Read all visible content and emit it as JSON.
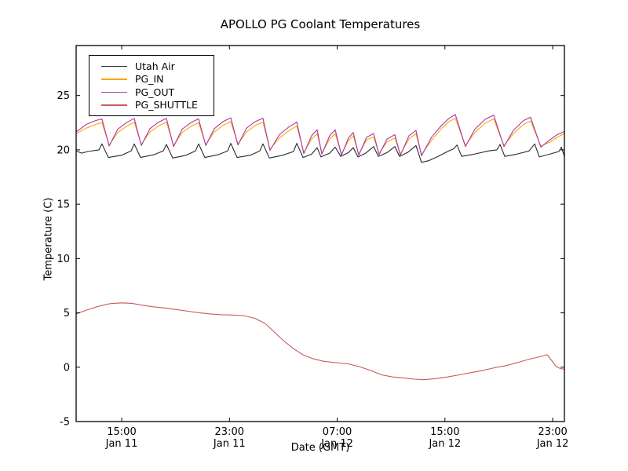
{
  "chart_data": {
    "type": "line",
    "title": "APOLLO PG Coolant Temperatures",
    "xlabel": "Date (GMT)",
    "ylabel": "Temperature (C)",
    "background_color": "#ffffff",
    "axis_color": "#000000",
    "grid": false,
    "legend_position": "upper left",
    "xlim_hours_from_jan11_0000": [
      11.62,
      47.87
    ],
    "ylim": [
      -5,
      29.6
    ],
    "y_ticks": [
      -5,
      0,
      5,
      10,
      15,
      20,
      25
    ],
    "x_ticks": [
      {
        "t": 15,
        "lines": [
          "15:00",
          "Jan 11"
        ]
      },
      {
        "t": 23,
        "lines": [
          "23:00",
          "Jan 11"
        ]
      },
      {
        "t": 31,
        "lines": [
          "07:00",
          "Jan 12"
        ]
      },
      {
        "t": 39,
        "lines": [
          "15:00",
          "Jan 12"
        ]
      },
      {
        "t": 47,
        "lines": [
          "23:00",
          "Jan 12"
        ]
      }
    ],
    "series": [
      {
        "name": "Utah Air",
        "color": "#2a2a2a",
        "points": [
          [
            11.62,
            19.9
          ],
          [
            12.03,
            19.7
          ],
          [
            12.49,
            19.85
          ],
          [
            13.31,
            20.0
          ],
          [
            13.54,
            20.55
          ],
          [
            14.01,
            19.3
          ],
          [
            15.0,
            19.5
          ],
          [
            15.7,
            19.9
          ],
          [
            15.93,
            20.55
          ],
          [
            16.4,
            19.3
          ],
          [
            17.39,
            19.55
          ],
          [
            18.09,
            19.9
          ],
          [
            18.32,
            20.5
          ],
          [
            18.79,
            19.25
          ],
          [
            19.78,
            19.5
          ],
          [
            20.48,
            19.9
          ],
          [
            20.71,
            20.55
          ],
          [
            21.18,
            19.3
          ],
          [
            22.17,
            19.55
          ],
          [
            22.87,
            19.9
          ],
          [
            23.1,
            20.6
          ],
          [
            23.57,
            19.3
          ],
          [
            24.56,
            19.5
          ],
          [
            25.26,
            19.9
          ],
          [
            25.49,
            20.55
          ],
          [
            25.96,
            19.25
          ],
          [
            26.95,
            19.5
          ],
          [
            27.76,
            19.85
          ],
          [
            28.0,
            20.6
          ],
          [
            28.46,
            19.3
          ],
          [
            29.1,
            19.6
          ],
          [
            29.51,
            20.2
          ],
          [
            29.8,
            19.35
          ],
          [
            30.44,
            19.7
          ],
          [
            30.85,
            20.25
          ],
          [
            31.26,
            19.4
          ],
          [
            31.84,
            19.75
          ],
          [
            32.19,
            20.2
          ],
          [
            32.54,
            19.35
          ],
          [
            33.12,
            19.7
          ],
          [
            33.71,
            20.3
          ],
          [
            34.06,
            19.4
          ],
          [
            34.7,
            19.75
          ],
          [
            35.28,
            20.3
          ],
          [
            35.63,
            19.4
          ],
          [
            36.27,
            19.8
          ],
          [
            36.85,
            20.4
          ],
          [
            37.26,
            18.85
          ],
          [
            37.79,
            19.0
          ],
          [
            38.49,
            19.4
          ],
          [
            39.19,
            19.85
          ],
          [
            39.65,
            20.1
          ],
          [
            39.89,
            20.45
          ],
          [
            40.24,
            19.4
          ],
          [
            41.17,
            19.6
          ],
          [
            42.22,
            19.9
          ],
          [
            42.86,
            20.0
          ],
          [
            43.09,
            20.5
          ],
          [
            43.44,
            19.4
          ],
          [
            44.32,
            19.6
          ],
          [
            45.25,
            19.9
          ],
          [
            45.66,
            20.55
          ],
          [
            46.01,
            19.35
          ],
          [
            46.76,
            19.6
          ],
          [
            47.46,
            19.85
          ],
          [
            47.64,
            20.25
          ],
          [
            47.87,
            19.4
          ]
        ]
      },
      {
        "name": "PG_IN",
        "color": "#ffa500",
        "points": [
          [
            11.62,
            21.5
          ],
          [
            12.38,
            22.0
          ],
          [
            13.08,
            22.35
          ],
          [
            13.54,
            22.5
          ],
          [
            14.07,
            20.45
          ],
          [
            14.71,
            21.6
          ],
          [
            15.35,
            22.15
          ],
          [
            15.93,
            22.55
          ],
          [
            16.46,
            20.5
          ],
          [
            17.1,
            21.65
          ],
          [
            17.74,
            22.2
          ],
          [
            18.32,
            22.55
          ],
          [
            18.85,
            20.4
          ],
          [
            19.49,
            21.6
          ],
          [
            20.13,
            22.15
          ],
          [
            20.71,
            22.5
          ],
          [
            21.24,
            20.5
          ],
          [
            21.88,
            21.65
          ],
          [
            22.52,
            22.25
          ],
          [
            23.1,
            22.6
          ],
          [
            23.63,
            20.55
          ],
          [
            24.27,
            21.65
          ],
          [
            24.91,
            22.25
          ],
          [
            25.49,
            22.55
          ],
          [
            26.01,
            20.05
          ],
          [
            26.71,
            21.1
          ],
          [
            27.41,
            21.75
          ],
          [
            28.0,
            22.2
          ],
          [
            28.52,
            19.75
          ],
          [
            29.1,
            21.0
          ],
          [
            29.51,
            21.5
          ],
          [
            29.86,
            19.7
          ],
          [
            30.44,
            21.0
          ],
          [
            30.85,
            21.5
          ],
          [
            31.32,
            19.6
          ],
          [
            31.84,
            20.85
          ],
          [
            32.19,
            21.3
          ],
          [
            32.6,
            19.6
          ],
          [
            33.18,
            20.9
          ],
          [
            33.71,
            21.2
          ],
          [
            34.11,
            19.65
          ],
          [
            34.7,
            20.75
          ],
          [
            35.28,
            21.1
          ],
          [
            35.69,
            19.6
          ],
          [
            36.33,
            21.0
          ],
          [
            36.85,
            21.5
          ],
          [
            37.26,
            19.55
          ],
          [
            38.02,
            20.9
          ],
          [
            38.78,
            22.0
          ],
          [
            39.3,
            22.6
          ],
          [
            39.77,
            22.9
          ],
          [
            40.52,
            20.4
          ],
          [
            41.22,
            21.6
          ],
          [
            41.98,
            22.45
          ],
          [
            42.62,
            22.85
          ],
          [
            43.38,
            20.4
          ],
          [
            44.08,
            21.5
          ],
          [
            44.84,
            22.35
          ],
          [
            45.36,
            22.65
          ],
          [
            46.12,
            20.35
          ],
          [
            46.76,
            20.7
          ],
          [
            47.34,
            21.15
          ],
          [
            47.87,
            21.5
          ]
        ]
      },
      {
        "name": "PG_OUT",
        "color": "#a637b0",
        "points": [
          [
            11.62,
            21.65
          ],
          [
            12.38,
            22.35
          ],
          [
            13.08,
            22.7
          ],
          [
            13.54,
            22.85
          ],
          [
            14.07,
            20.35
          ],
          [
            14.71,
            21.9
          ],
          [
            15.35,
            22.5
          ],
          [
            15.93,
            22.9
          ],
          [
            16.46,
            20.4
          ],
          [
            17.1,
            21.95
          ],
          [
            17.74,
            22.55
          ],
          [
            18.32,
            22.9
          ],
          [
            18.85,
            20.3
          ],
          [
            19.49,
            21.9
          ],
          [
            20.13,
            22.5
          ],
          [
            20.71,
            22.85
          ],
          [
            21.24,
            20.4
          ],
          [
            21.88,
            21.95
          ],
          [
            22.52,
            22.6
          ],
          [
            23.1,
            22.95
          ],
          [
            23.63,
            20.45
          ],
          [
            24.27,
            22.0
          ],
          [
            24.91,
            22.6
          ],
          [
            25.49,
            22.9
          ],
          [
            26.01,
            19.95
          ],
          [
            26.71,
            21.4
          ],
          [
            27.41,
            22.1
          ],
          [
            28.0,
            22.55
          ],
          [
            28.52,
            19.65
          ],
          [
            29.1,
            21.3
          ],
          [
            29.51,
            21.85
          ],
          [
            29.86,
            19.6
          ],
          [
            30.44,
            21.3
          ],
          [
            30.85,
            21.85
          ],
          [
            31.32,
            19.5
          ],
          [
            31.84,
            21.1
          ],
          [
            32.19,
            21.6
          ],
          [
            32.6,
            19.5
          ],
          [
            33.18,
            21.15
          ],
          [
            33.71,
            21.5
          ],
          [
            34.11,
            19.55
          ],
          [
            34.7,
            21.0
          ],
          [
            35.28,
            21.4
          ],
          [
            35.69,
            19.5
          ],
          [
            36.33,
            21.3
          ],
          [
            36.85,
            21.8
          ],
          [
            37.26,
            19.45
          ],
          [
            38.02,
            21.2
          ],
          [
            38.78,
            22.3
          ],
          [
            39.3,
            22.9
          ],
          [
            39.77,
            23.25
          ],
          [
            40.52,
            20.3
          ],
          [
            41.22,
            21.9
          ],
          [
            41.98,
            22.8
          ],
          [
            42.62,
            23.2
          ],
          [
            43.38,
            20.3
          ],
          [
            44.08,
            21.8
          ],
          [
            44.84,
            22.7
          ],
          [
            45.36,
            23.0
          ],
          [
            46.12,
            20.25
          ],
          [
            46.76,
            20.9
          ],
          [
            47.34,
            21.4
          ],
          [
            47.87,
            21.7
          ]
        ]
      },
      {
        "name": "PG_SHUTTLE",
        "color": "#c65a5a",
        "points": [
          [
            11.62,
            4.9
          ],
          [
            12.38,
            5.25
          ],
          [
            13.25,
            5.6
          ],
          [
            14.13,
            5.85
          ],
          [
            15.0,
            5.92
          ],
          [
            15.76,
            5.88
          ],
          [
            16.57,
            5.7
          ],
          [
            17.39,
            5.55
          ],
          [
            18.21,
            5.45
          ],
          [
            19.08,
            5.3
          ],
          [
            19.95,
            5.15
          ],
          [
            20.83,
            5.0
          ],
          [
            21.58,
            4.9
          ],
          [
            22.4,
            4.83
          ],
          [
            23.22,
            4.8
          ],
          [
            24.03,
            4.75
          ],
          [
            24.91,
            4.5
          ],
          [
            25.67,
            4.0
          ],
          [
            26.36,
            3.2
          ],
          [
            27.06,
            2.4
          ],
          [
            27.76,
            1.7
          ],
          [
            28.46,
            1.15
          ],
          [
            29.16,
            0.8
          ],
          [
            29.98,
            0.55
          ],
          [
            30.91,
            0.42
          ],
          [
            31.84,
            0.3
          ],
          [
            32.66,
            0.05
          ],
          [
            33.47,
            -0.3
          ],
          [
            34.29,
            -0.7
          ],
          [
            35.11,
            -0.9
          ],
          [
            35.98,
            -1.0
          ],
          [
            36.74,
            -1.1
          ],
          [
            37.44,
            -1.15
          ],
          [
            38.31,
            -1.05
          ],
          [
            39.19,
            -0.9
          ],
          [
            40.06,
            -0.7
          ],
          [
            40.94,
            -0.5
          ],
          [
            41.81,
            -0.3
          ],
          [
            42.68,
            -0.05
          ],
          [
            43.56,
            0.15
          ],
          [
            44.43,
            0.45
          ],
          [
            45.31,
            0.75
          ],
          [
            46.18,
            1.0
          ],
          [
            46.59,
            1.15
          ],
          [
            46.94,
            0.6
          ],
          [
            47.23,
            0.1
          ],
          [
            47.52,
            -0.1
          ],
          [
            47.87,
            -0.2
          ]
        ]
      }
    ]
  }
}
